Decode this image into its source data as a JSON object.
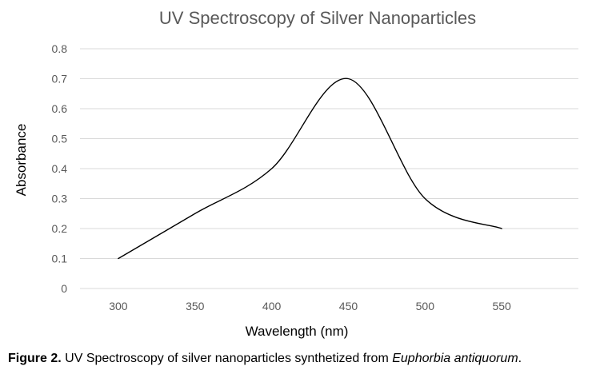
{
  "chart_data": {
    "type": "line",
    "title": "UV Spectroscopy of Silver Nanoparticles",
    "xlabel": "Wavelength (nm)",
    "ylabel": "Absorbance",
    "x_ticks": [
      "300",
      "350",
      "400",
      "450",
      "500",
      "550"
    ],
    "y_ticks": [
      "0",
      "0.1",
      "0.2",
      "0.3",
      "0.4",
      "0.5",
      "0.6",
      "0.7",
      "0.8"
    ],
    "xlim": [
      275,
      600
    ],
    "ylim": [
      0,
      0.8
    ],
    "grid": true,
    "legend": "none",
    "series": [
      {
        "name": "Absorbance",
        "x": [
          300,
          350,
          400,
          450,
          500,
          550
        ],
        "y": [
          0.1,
          0.25,
          0.4,
          0.7,
          0.3,
          0.2
        ]
      }
    ]
  },
  "caption": {
    "label": "Figure 2.",
    "text": "UV Spectroscopy of silver nanoparticles synthetized from",
    "species": "Euphorbia antiquorum",
    "end": "."
  }
}
